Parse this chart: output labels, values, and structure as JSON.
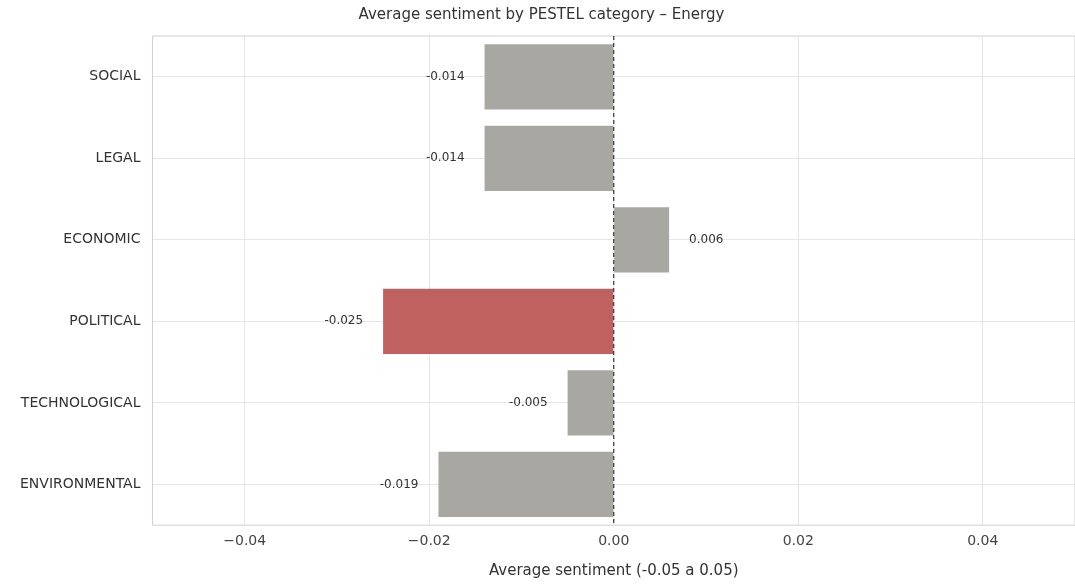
{
  "chart_data": {
    "type": "bar",
    "orientation": "horizontal",
    "title": "Average sentiment by PESTEL category – Energy",
    "xlabel": "Average sentiment (-0.05 a 0.05)",
    "categories": [
      "SOCIAL",
      "LEGAL",
      "ECONOMIC",
      "POLITICAL",
      "TECHNOLOGICAL",
      "ENVIRONMENTAL"
    ],
    "values": [
      -0.014,
      -0.014,
      0.006,
      -0.025,
      -0.005,
      -0.019
    ],
    "colors": [
      "#a8a7a2",
      "#a8a7a2",
      "#a8a7a2",
      "#c0605f",
      "#a8a7a2",
      "#a8a7a2"
    ],
    "xlim": [
      -0.05,
      0.05
    ],
    "xticks": [
      {
        "value": -0.04,
        "label": "−0.04"
      },
      {
        "value": -0.02,
        "label": "−0.02"
      },
      {
        "value": 0,
        "label": "0.00"
      },
      {
        "value": 0.02,
        "label": "0.02"
      },
      {
        "value": 0.04,
        "label": "0.04"
      }
    ],
    "ref_lines": [
      {
        "axis": "x",
        "value": 0,
        "color": "#333333",
        "line_style": "dashed"
      }
    ],
    "data_labels": true,
    "grid": true,
    "legend": false
  }
}
